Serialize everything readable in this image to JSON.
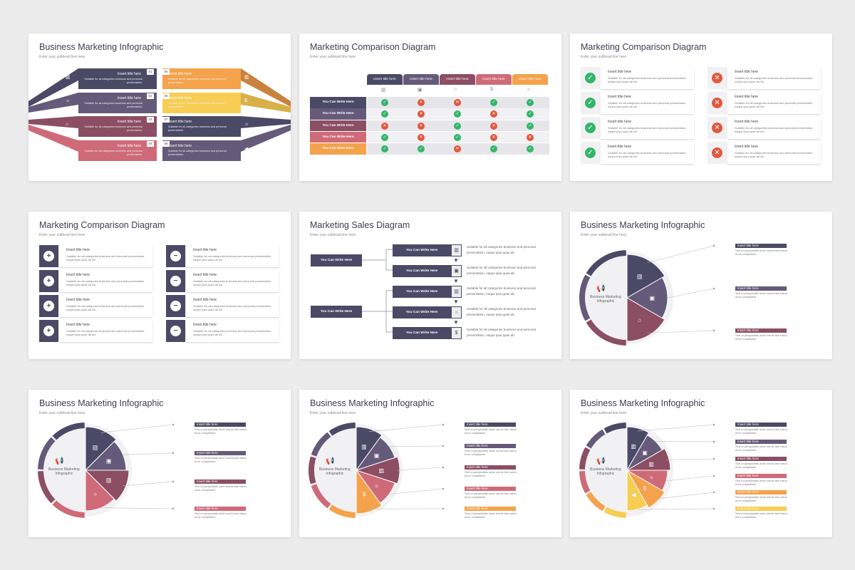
{
  "colors": {
    "navy": "#4a4a66",
    "purple": "#655a79",
    "plum": "#8b4e63",
    "rose": "#cf6a78",
    "orange": "#f4a24c",
    "yellow": "#f7cd53",
    "green": "#34b56a",
    "red": "#e2573d",
    "grey": "#7d7d88"
  },
  "slides": [
    {
      "title": "Business Marketing Infographic",
      "subtitle": "Enter your subhead line here",
      "items": [
        {
          "num": "01",
          "title": "Insert title here",
          "text": "Suitable for all categories business and personal presentation.",
          "icon": "chart-icon"
        },
        {
          "num": "02",
          "title": "Insert title here",
          "text": "Suitable for all categories business and personal presentation.",
          "icon": "lightbulb-icon"
        },
        {
          "num": "03",
          "title": "Insert title here",
          "text": "Suitable for all categories business and personal presentation.",
          "icon": "shop-icon"
        },
        {
          "num": "04",
          "title": "Insert title here",
          "text": "Suitable for all categories business and personal presentation.",
          "icon": "briefcase-icon"
        },
        {
          "num": "05",
          "title": "Insert title here",
          "text": "Suitable for all categories business and personal presentation.",
          "icon": "chart-icon"
        },
        {
          "num": "06",
          "title": "Insert title here",
          "text": "Suitable for all categories business and personal presentation.",
          "icon": "money-icon"
        },
        {
          "num": "07",
          "title": "Insert title here",
          "text": "Suitable for all categories business and personal presentation.",
          "icon": "lightbulb-icon"
        },
        {
          "num": "08",
          "title": "Insert title here",
          "text": "Suitable for all categories business and personal presentation.",
          "icon": "megaphone-icon"
        }
      ]
    },
    {
      "title": "Marketing Comparison Diagram",
      "subtitle": "Enter your subhead line here",
      "headers": [
        "Insert title here",
        "Insert title here",
        "Insert title here",
        "Insert title here",
        "Insert title here"
      ],
      "rows": [
        "You Can Write Here",
        "You Can Write Here",
        "You Can Write Here",
        "You Can Write Here",
        "You Can Write Here"
      ],
      "matrix": [
        [
          1,
          0,
          0,
          1,
          1
        ],
        [
          1,
          0,
          1,
          0,
          1
        ],
        [
          0,
          0,
          1,
          0,
          1
        ],
        [
          1,
          0,
          1,
          0,
          0
        ],
        [
          1,
          1,
          0,
          1,
          1
        ]
      ]
    },
    {
      "title": "Marketing Comparison Diagram",
      "subtitle": "Enter your subhead line here",
      "item_title": "Insert title here",
      "item_text": "Suitable for all categories business and personal presentation, eaque ipsa quae ab illo."
    },
    {
      "title": "Marketing Comparison Diagram",
      "subtitle": "Enter your subhead line here",
      "item_title": "Insert title here",
      "item_text": "Suitable for all categories business and personal presentation, eaque ipsa quae ab illo."
    },
    {
      "title": "Marketing Sales Diagram",
      "subtitle": "Enter your subhead line here",
      "left": [
        "You Can Write Here",
        "You Can Write Here"
      ],
      "right": [
        "You Can Write Here",
        "You Can Write Here",
        "You Can Write Here",
        "You Can Write Here",
        "You Can Write Here"
      ],
      "desc": "Suitable for all categories business and personal presentation, eaque ipsa quae ab."
    },
    {
      "title": "Business Marketing Infographic",
      "subtitle": "Enter your subhead line here",
      "center": "Business Marketing Infographic",
      "item_title": "Insert title here",
      "item_text": "Sed ut perspiciatis unde omnis iste natus error voluptatem."
    },
    {
      "title": "Business Marketing Infographic",
      "subtitle": "Enter your subhead line here",
      "center": "Business Marketing Infographic",
      "item_title": "Insert title here",
      "item_text": "Sed ut perspiciatis unde omnis iste natus error voluptatem."
    },
    {
      "title": "Business Marketing Infographic",
      "subtitle": "Enter your subhead line here",
      "center": "Business Marketing Infographic",
      "item_title": "Insert title here",
      "item_text": "Sed ut perspiciatis unde omnis iste natus error voluptatem."
    },
    {
      "title": "Business Marketing Infographic",
      "subtitle": "Enter your subhead line here",
      "center": "Business Marketing Infographic",
      "item_title": "Insert title here",
      "item_text": "Sed ut perspiciatis unde omnis iste natus error voluptatem."
    }
  ]
}
